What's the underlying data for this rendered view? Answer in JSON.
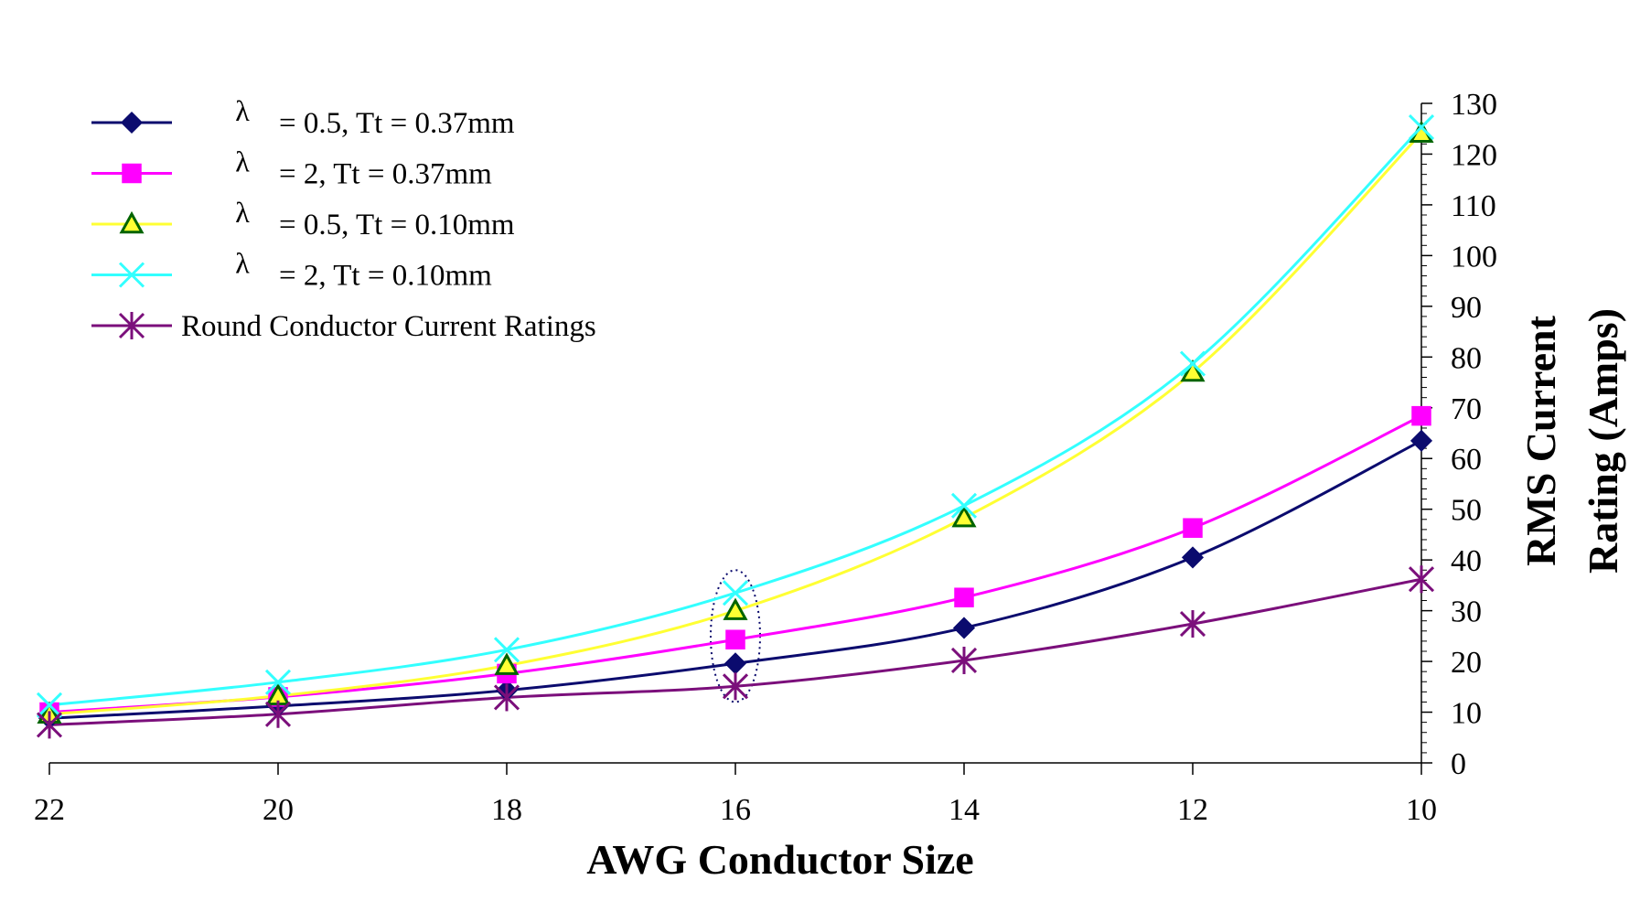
{
  "chart_data": {
    "type": "line",
    "title": "",
    "xlabel": "AWG Conductor Size",
    "ylabel": "RMS Current Rating (Amps)",
    "ylabel_lines": [
      "RMS Current",
      "Rating (Amps)"
    ],
    "x": [
      22,
      20,
      18,
      16,
      14,
      12,
      10
    ],
    "x_tick_labels": [
      "22",
      "20",
      "18",
      "16",
      "14",
      "12",
      "10"
    ],
    "xlim": [
      22,
      10
    ],
    "x_reversed": true,
    "ylim": [
      0,
      130
    ],
    "y_tick_labels": [
      "0",
      "10",
      "20",
      "30",
      "40",
      "50",
      "60",
      "70",
      "80",
      "90",
      "100",
      "110",
      "120",
      "130"
    ],
    "y_axis_side": "right",
    "grid": false,
    "legend_position": "top-left",
    "series": [
      {
        "symbol": "λ",
        "label": "= 0.5, Tt = 0.37mm",
        "values": [
          8.8,
          11.2,
          14.3,
          19.6,
          26.6,
          40.5,
          63.5
        ],
        "color": "#0b0b6e",
        "marker": "diamond",
        "marker_fill": "#0b0b6e",
        "marker_stroke": "#0b0b6e"
      },
      {
        "symbol": "λ",
        "label": "= 2, Tt = 0.37mm",
        "values": [
          10.0,
          13.0,
          17.6,
          24.3,
          32.6,
          46.3,
          68.4
        ],
        "color": "#ff00ff",
        "marker": "square",
        "marker_fill": "#ff00ff",
        "marker_stroke": "#ff00ff"
      },
      {
        "symbol": "λ",
        "label": "= 0.5, Tt = 0.10mm",
        "values": [
          9.6,
          13.2,
          19.2,
          30.0,
          48.3,
          77.0,
          124.1
        ],
        "color": "#ffff33",
        "marker": "triangle",
        "marker_fill": "#ffff33",
        "marker_stroke": "#006400"
      },
      {
        "symbol": "λ",
        "label": "= 2, Tt = 0.10mm",
        "values": [
          11.4,
          15.9,
          22.3,
          33.5,
          50.7,
          78.7,
          125.3
        ],
        "color": "#33ffff",
        "marker": "x",
        "marker_fill": "none",
        "marker_stroke": "#33ffff"
      },
      {
        "symbol": "",
        "label": "Round Conductor Current Ratings",
        "values": [
          7.5,
          9.6,
          12.9,
          15.1,
          20.2,
          27.4,
          36.2
        ],
        "color": "#7b0f7b",
        "marker": "asterisk",
        "marker_fill": "none",
        "marker_stroke": "#7b0f7b"
      }
    ],
    "annotation": {
      "type": "dotted-ellipse",
      "x": 16,
      "y_from": 12,
      "y_to": 38
    }
  }
}
